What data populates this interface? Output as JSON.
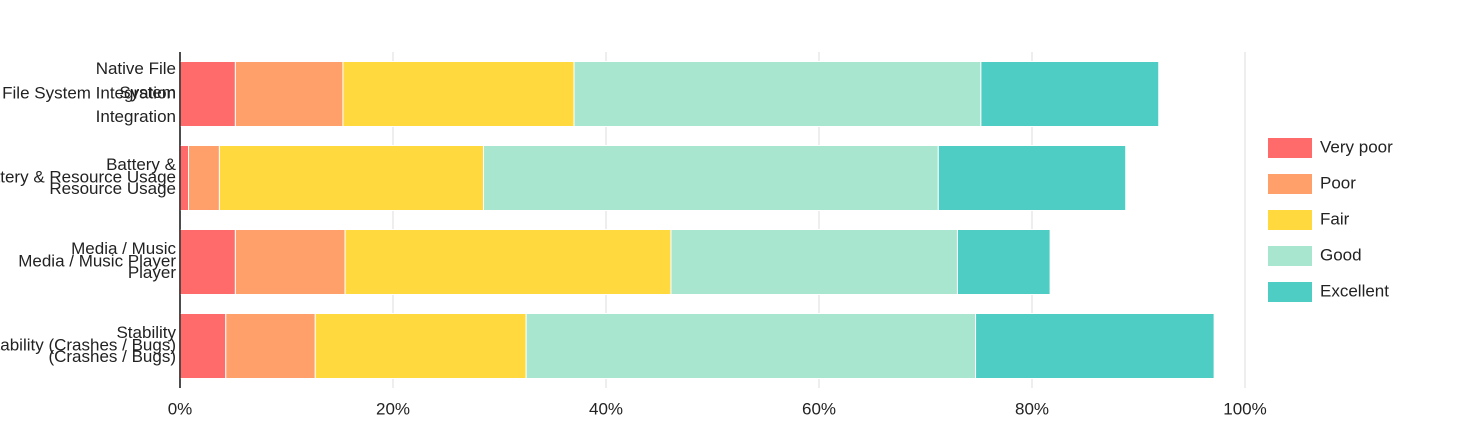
{
  "chart_data": {
    "type": "stacked-bar-horizontal",
    "categories": [
      "Native File\nSystem\nIntegration",
      "Battery &\nResource Usage",
      "Media / Music\nPlayer",
      "Stability\n(Crashes / Bugs)"
    ],
    "series": [
      {
        "name": "Very poor",
        "color": "#ff6b6b",
        "values": [
          5.2,
          0.8,
          5.2,
          4.3
        ]
      },
      {
        "name": "Poor",
        "color": "#ffa06b",
        "values": [
          10.1,
          2.9,
          10.3,
          8.4
        ]
      },
      {
        "name": "Fair",
        "color": "#ffd93d",
        "values": [
          21.7,
          24.8,
          30.6,
          19.8
        ]
      },
      {
        "name": "Good",
        "color": "#a8e6cf",
        "values": [
          38.2,
          42.7,
          26.9,
          42.2
        ]
      },
      {
        "name": "Excellent",
        "color": "#4ecdc4",
        "values": [
          16.7,
          17.6,
          8.7,
          22.4
        ]
      }
    ],
    "xlim": [
      0,
      100
    ],
    "xticks": [
      {
        "value": 0,
        "label": "0%"
      },
      {
        "value": 20,
        "label": "20%"
      },
      {
        "value": 40,
        "label": "40%"
      },
      {
        "value": 60,
        "label": "60%"
      },
      {
        "value": 80,
        "label": "80%"
      },
      {
        "value": 100,
        "label": "100%"
      }
    ],
    "grid": true,
    "legend": "right"
  }
}
